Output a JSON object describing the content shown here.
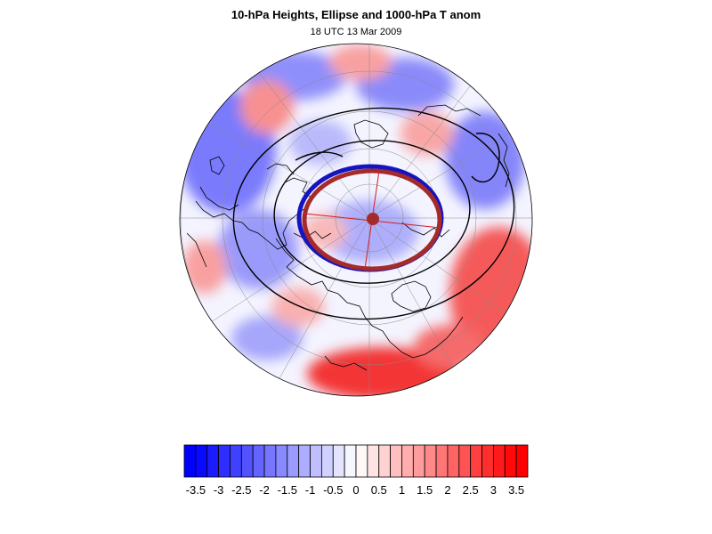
{
  "header": {
    "title": "10-hPa Heights, Ellipse and 1000-hPa T anom",
    "subtitle": "18 UTC 13 Mar 2009"
  },
  "map": {
    "projection": "polar stereographic (north pole)",
    "features": [
      "temperature anomaly shading",
      "coastlines",
      "latitude/longitude graticule",
      "10-hPa height contours",
      "fitted ellipse",
      "vortex centroid"
    ],
    "colors": {
      "negative": "#0000ff",
      "positive": "#ff0000",
      "neutral": "#ffffff",
      "height_contour": "#000000",
      "ellipse_outer": "#1515c0",
      "ellipse_inner": "#a52a2a",
      "centroid": "#a52a2a"
    }
  },
  "colorbar": {
    "tick_labels": [
      "-3.5",
      "-3",
      "-2.5",
      "-2",
      "-1.5",
      "-1",
      "-0.5",
      "0",
      "0.5",
      "1",
      "1.5",
      "2",
      "2.5",
      "3",
      "3.5"
    ],
    "levels": [
      -3.75,
      -3.5,
      -3.25,
      -3,
      -2.75,
      -2.5,
      -2.25,
      -2,
      -1.75,
      -1.5,
      -1.25,
      -1,
      -0.75,
      -0.5,
      -0.25,
      0,
      0.25,
      0.5,
      0.75,
      1,
      1.25,
      1.5,
      1.75,
      2,
      2.25,
      2.5,
      2.75,
      3,
      3.25,
      3.5,
      3.75
    ],
    "color_min": "#0000ff",
    "color_mid": "#ffffff",
    "color_max": "#ff0000"
  }
}
